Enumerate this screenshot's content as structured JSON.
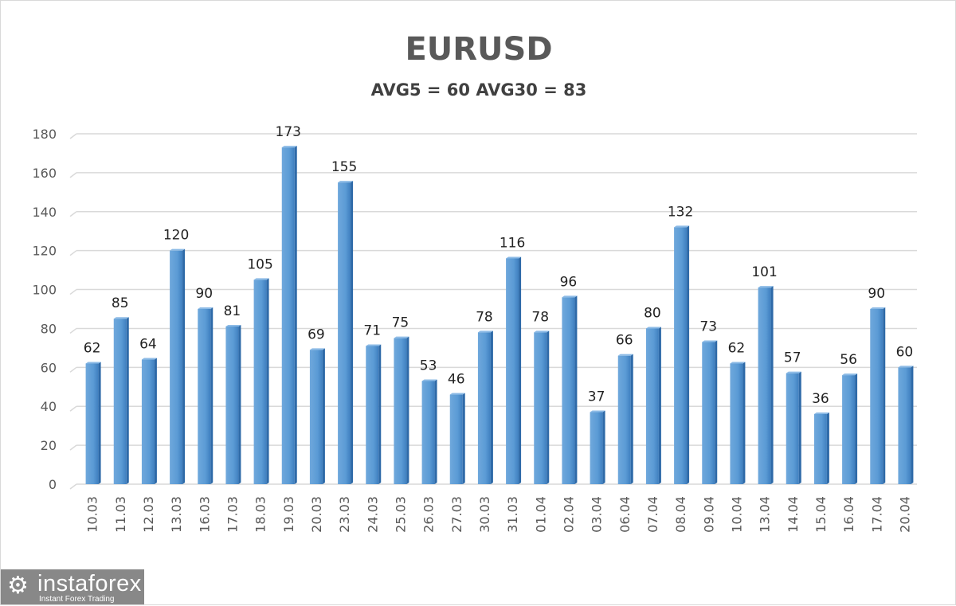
{
  "chart_data": {
    "type": "bar",
    "title": "EURUSD",
    "subtitle": "AVG5 = 60 AVG30 = 83",
    "xlabel": "",
    "ylabel": "",
    "ylim": [
      0,
      180
    ],
    "yticks": [
      0,
      20,
      40,
      60,
      80,
      100,
      120,
      140,
      160,
      180
    ],
    "grid": true,
    "bar_color": "#5b9bd5",
    "categories": [
      "10.03",
      "11.03",
      "12.03",
      "13.03",
      "16.03",
      "17.03",
      "18.03",
      "19.03",
      "20.03",
      "23.03",
      "24.03",
      "25.03",
      "26.03",
      "27.03",
      "30.03",
      "31.03",
      "01.04",
      "02.04",
      "03.04",
      "06.04",
      "07.04",
      "08.04",
      "09.04",
      "10.04",
      "13.04",
      "14.04",
      "15.04",
      "16.04",
      "17.04",
      "20.04"
    ],
    "values": [
      62,
      85,
      64,
      120,
      90,
      81,
      105,
      173,
      69,
      155,
      71,
      75,
      53,
      46,
      78,
      116,
      78,
      96,
      37,
      66,
      80,
      132,
      73,
      62,
      101,
      57,
      36,
      56,
      90,
      60
    ]
  },
  "logo": {
    "name": "instaforex",
    "tagline": "Instant Forex Trading"
  }
}
